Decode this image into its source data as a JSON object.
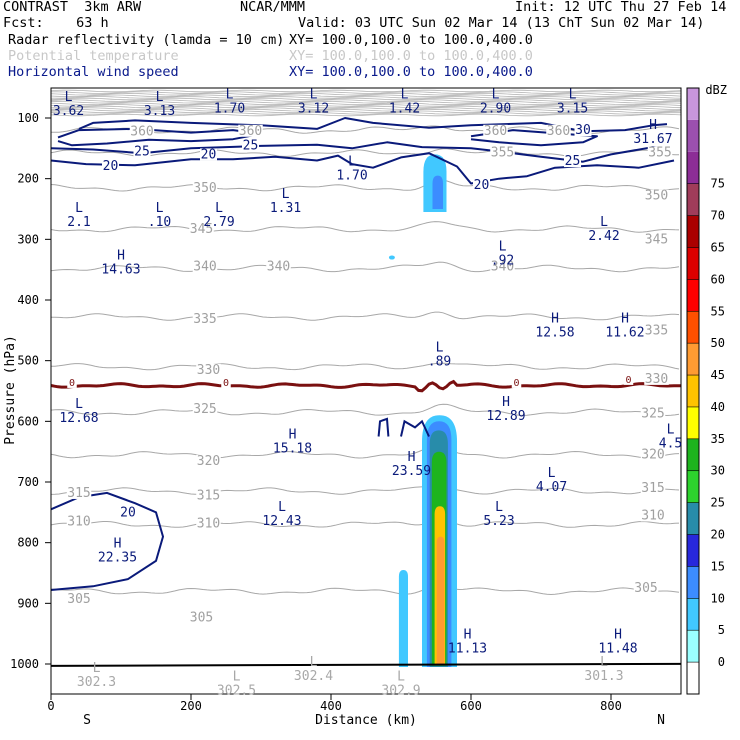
{
  "header": {
    "model": "CONTRAST  3km ARW",
    "forecast": "Fcst:    63 h",
    "org": "NCAR/MMM",
    "init": "Init: 12 UTC Thu 27 Feb 14",
    "valid": "Valid: 03 UTC Sun 02 Mar 14 (13 ChT Sun 02 Mar 14)",
    "fields": [
      {
        "name": "Radar reflectivity (lamda = 10 cm)",
        "xy": "XY= 100.0,100.0 to 100.0,400.0",
        "color": "#000000"
      },
      {
        "name": "Potential temperature",
        "xy": "XY= 100.0,100.0 to 100.0,400.0",
        "color": "#c8c8c8"
      },
      {
        "name": "Horizontal wind speed",
        "xy": "XY= 100.0,100.0 to 100.0,400.0",
        "color": "#0a1a8c"
      }
    ]
  },
  "chart_data": {
    "type": "contour-cross-section",
    "xlabel": "Distance (km)",
    "ylabel": "Pressure (hPa)",
    "xlim": [
      0,
      900
    ],
    "ylim": [
      1050,
      80
    ],
    "x_ticks": [
      0,
      200,
      400,
      600,
      800
    ],
    "y_ticks": [
      100,
      200,
      300,
      400,
      500,
      600,
      700,
      800,
      900,
      1000
    ],
    "x_end_labels": {
      "left": "S",
      "right": "N"
    },
    "colorbar": {
      "unit": "dBZ",
      "levels": [
        0,
        5,
        10,
        15,
        20,
        25,
        30,
        35,
        40,
        45,
        50,
        55,
        60,
        65,
        70,
        75
      ],
      "colors": [
        "#ffffff",
        "#9bffff",
        "#41c8ff",
        "#3c8cff",
        "#2828dc",
        "#288caa",
        "#2dd22d",
        "#1eb41e",
        "#ffff00",
        "#ffc300",
        "#ff9b32",
        "#ff5000",
        "#ff0000",
        "#dc0000",
        "#aa0000",
        "#a03c5a",
        "#8c2d96",
        "#9b50af",
        "#c896dc"
      ]
    },
    "theta_labels": [
      {
        "text": "360",
        "x": 130,
        "p": 127
      },
      {
        "text": "360",
        "x": 285,
        "p": 126
      },
      {
        "text": "360",
        "x": 635,
        "p": 126
      },
      {
        "text": "360",
        "x": 725,
        "p": 126
      },
      {
        "text": "355",
        "x": 645,
        "p": 162
      },
      {
        "text": "355",
        "x": 870,
        "p": 162
      },
      {
        "text": "350",
        "x": 220,
        "p": 220
      },
      {
        "text": "350",
        "x": 865,
        "p": 233
      },
      {
        "text": "345",
        "x": 215,
        "p": 288
      },
      {
        "text": "345",
        "x": 865,
        "p": 305
      },
      {
        "text": "340",
        "x": 220,
        "p": 350
      },
      {
        "text": "340",
        "x": 325,
        "p": 350
      },
      {
        "text": "340",
        "x": 645,
        "p": 350
      },
      {
        "text": "335",
        "x": 220,
        "p": 436
      },
      {
        "text": "335",
        "x": 865,
        "p": 455
      },
      {
        "text": "330",
        "x": 225,
        "p": 520
      },
      {
        "text": "330",
        "x": 865,
        "p": 535
      },
      {
        "text": "325",
        "x": 220,
        "p": 585
      },
      {
        "text": "325",
        "x": 860,
        "p": 592
      },
      {
        "text": "320",
        "x": 225,
        "p": 670
      },
      {
        "text": "320",
        "x": 860,
        "p": 660
      },
      {
        "text": "315",
        "x": 40,
        "p": 723
      },
      {
        "text": "315",
        "x": 225,
        "p": 727
      },
      {
        "text": "315",
        "x": 860,
        "p": 715
      },
      {
        "text": "310",
        "x": 40,
        "p": 770
      },
      {
        "text": "310",
        "x": 225,
        "p": 773
      },
      {
        "text": "310",
        "x": 860,
        "p": 760
      },
      {
        "text": "305",
        "x": 40,
        "p": 898
      },
      {
        "text": "305",
        "x": 215,
        "p": 928
      },
      {
        "text": "305",
        "x": 850,
        "p": 880
      }
    ],
    "wind_labels": [
      {
        "text": "30",
        "x": 760,
        "p": 125
      },
      {
        "text": "25",
        "x": 130,
        "p": 160
      },
      {
        "text": "25",
        "x": 285,
        "p": 150
      },
      {
        "text": "25",
        "x": 745,
        "p": 176
      },
      {
        "text": "20",
        "x": 85,
        "p": 184
      },
      {
        "text": "20",
        "x": 225,
        "p": 165
      },
      {
        "text": "20",
        "x": 615,
        "p": 215
      },
      {
        "text": "20",
        "x": 110,
        "p": 755
      },
      {
        "text": "0",
        "x": 30,
        "p": 540
      },
      {
        "text": "0",
        "x": 250,
        "p": 540
      },
      {
        "text": "0",
        "x": 665,
        "p": 540
      },
      {
        "text": "0",
        "x": 825,
        "p": 535
      }
    ],
    "extrema": [
      {
        "kind": "L",
        "value": "3.62",
        "x": 25,
        "p": 72,
        "color": "blue"
      },
      {
        "kind": "L",
        "value": "3.13",
        "x": 155,
        "p": 72,
        "color": "blue"
      },
      {
        "kind": "L",
        "value": "1.70",
        "x": 255,
        "p": 68,
        "color": "blue"
      },
      {
        "kind": "L",
        "value": "3.12",
        "x": 375,
        "p": 68,
        "color": "blue"
      },
      {
        "kind": "L",
        "value": "1.42",
        "x": 505,
        "p": 68,
        "color": "blue"
      },
      {
        "kind": "L",
        "value": "2.90",
        "x": 635,
        "p": 68,
        "color": "blue"
      },
      {
        "kind": "L",
        "value": "3.15",
        "x": 745,
        "p": 68,
        "color": "blue"
      },
      {
        "kind": "H",
        "value": "31.67",
        "x": 860,
        "p": 118,
        "color": "blue"
      },
      {
        "kind": "L",
        "value": "1.70",
        "x": 430,
        "p": 178,
        "color": "blue"
      },
      {
        "kind": "L",
        "value": "2.1",
        "x": 40,
        "p": 255,
        "color": "blue"
      },
      {
        "kind": "L",
        "value": ".10",
        "x": 155,
        "p": 255,
        "color": "blue"
      },
      {
        "kind": "L",
        "value": "2.79",
        "x": 240,
        "p": 255,
        "color": "blue"
      },
      {
        "kind": "L",
        "value": "1.31",
        "x": 335,
        "p": 232,
        "color": "blue"
      },
      {
        "kind": "L",
        "value": "2.42",
        "x": 790,
        "p": 278,
        "color": "blue"
      },
      {
        "kind": "L",
        "value": ".92",
        "x": 645,
        "p": 318,
        "color": "blue"
      },
      {
        "kind": "H",
        "value": "14.63",
        "x": 100,
        "p": 333,
        "color": "blue"
      },
      {
        "kind": "H",
        "value": "12.58",
        "x": 720,
        "p": 437,
        "color": "blue"
      },
      {
        "kind": "H",
        "value": "11.62",
        "x": 820,
        "p": 437,
        "color": "blue"
      },
      {
        "kind": "L",
        "value": ".89",
        "x": 555,
        "p": 485,
        "color": "blue"
      },
      {
        "kind": "L",
        "value": "12.68",
        "x": 40,
        "p": 578,
        "color": "blue"
      },
      {
        "kind": "H",
        "value": "12.89",
        "x": 650,
        "p": 575,
        "color": "blue"
      },
      {
        "kind": "L",
        "value": "4.5",
        "x": 885,
        "p": 620,
        "color": "blue"
      },
      {
        "kind": "H",
        "value": "15.18",
        "x": 345,
        "p": 628,
        "color": "blue"
      },
      {
        "kind": "H",
        "value": "23.59",
        "x": 515,
        "p": 665,
        "color": "blue"
      },
      {
        "kind": "L",
        "value": "4.07",
        "x": 715,
        "p": 692,
        "color": "blue"
      },
      {
        "kind": "L",
        "value": "12.43",
        "x": 330,
        "p": 748,
        "color": "blue"
      },
      {
        "kind": "L",
        "value": "5.23",
        "x": 640,
        "p": 748,
        "color": "blue"
      },
      {
        "kind": "H",
        "value": "22.35",
        "x": 95,
        "p": 808,
        "color": "blue"
      },
      {
        "kind": "H",
        "value": "11.13",
        "x": 595,
        "p": 958,
        "color": "blue"
      },
      {
        "kind": "H",
        "value": "11.48",
        "x": 810,
        "p": 958,
        "color": "blue"
      },
      {
        "kind": "L",
        "value": "302.3",
        "x": 65,
        "p": 1013,
        "color": "gray"
      },
      {
        "kind": "L",
        "value": "302.4",
        "x": 375,
        "p": 1003,
        "color": "gray"
      },
      {
        "kind": "L",
        "value": "302.5",
        "x": 265,
        "p": 1027,
        "color": "gray"
      },
      {
        "kind": "L",
        "value": "302.9",
        "x": 500,
        "p": 1027,
        "color": "gray"
      },
      {
        "kind": "L",
        "value": "301.3",
        "x": 790,
        "p": 1003,
        "color": "gray"
      }
    ],
    "theta_levels": [
      {
        "theta": 360,
        "p": 120
      },
      {
        "theta": 355,
        "p": 158
      },
      {
        "theta": 350,
        "p": 215
      },
      {
        "theta": 345,
        "p": 283
      },
      {
        "theta": 340,
        "p": 348
      },
      {
        "theta": 335,
        "p": 428
      },
      {
        "theta": 330,
        "p": 510
      },
      {
        "theta": 325,
        "p": 585
      },
      {
        "theta": 320,
        "p": 655
      },
      {
        "theta": 315,
        "p": 715
      },
      {
        "theta": 310,
        "p": 770
      },
      {
        "theta": 305,
        "p": 880
      }
    ],
    "reflectivity_core": [
      {
        "dbz": 5,
        "x0": 530,
        "x1": 580,
        "p0": 590,
        "p1": 1005
      },
      {
        "dbz": 10,
        "x0": 537,
        "x1": 572,
        "p0": 600,
        "p1": 1005
      },
      {
        "dbz": 20,
        "x0": 541,
        "x1": 567,
        "p0": 615,
        "p1": 1005
      },
      {
        "dbz": 30,
        "x0": 544,
        "x1": 565,
        "p0": 650,
        "p1": 1003
      },
      {
        "dbz": 40,
        "x0": 548,
        "x1": 563,
        "p0": 740,
        "p1": 1002
      },
      {
        "dbz": 45,
        "x0": 551,
        "x1": 562,
        "p0": 790,
        "p1": 1000
      }
    ],
    "reflectivity_upper": [
      {
        "dbz": 5,
        "x0": 532,
        "x1": 565,
        "p0": 160,
        "p1": 255
      },
      {
        "dbz": 10,
        "x0": 545,
        "x1": 560,
        "p0": 195,
        "p1": 250
      }
    ],
    "reflectivity_lower_left": [
      {
        "dbz": 5,
        "x0": 497,
        "x1": 510,
        "p0": 845,
        "p1": 1005
      }
    ]
  }
}
